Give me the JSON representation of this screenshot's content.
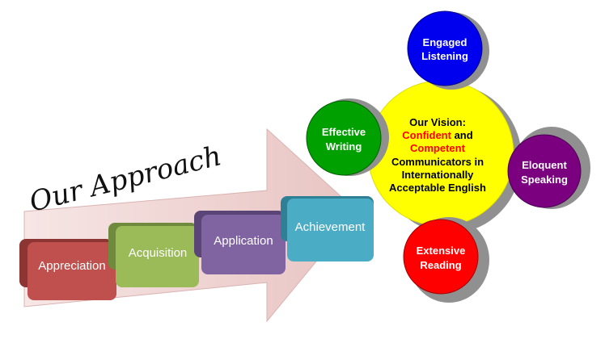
{
  "title": "Our Approach",
  "steps": [
    {
      "label": "Appreciation",
      "color": "#c0504d",
      "side": "#8c3532"
    },
    {
      "label": "Acquisition",
      "color": "#9bbb59",
      "side": "#6f8a3c"
    },
    {
      "label": "Application",
      "color": "#8064a2",
      "side": "#5a4576"
    },
    {
      "label": "Achievement",
      "color": "#4bacc6",
      "side": "#2f7f95"
    }
  ],
  "vision": {
    "heading": "Our Vision:",
    "line1_highlight": "Confident",
    "line1_rest": " and",
    "line2_highlight": "Competent",
    "line3": "Communicators in",
    "line4": "Internationally",
    "line5": "Acceptable English",
    "color": "#ffff00",
    "highlight_color": "#ff0000"
  },
  "circles": [
    {
      "id": "listening",
      "line1": "Engaged",
      "line2": "Listening",
      "color": "#0000ee"
    },
    {
      "id": "writing",
      "line1": "Effective",
      "line2": "Writing",
      "color": "#00a000"
    },
    {
      "id": "speaking",
      "line1": "Eloquent",
      "line2": "Speaking",
      "color": "#7a0080"
    },
    {
      "id": "reading",
      "line1": "Extensive",
      "line2": "Reading",
      "color": "#ff0000"
    }
  ],
  "arrow_color": "#f2dcdb"
}
